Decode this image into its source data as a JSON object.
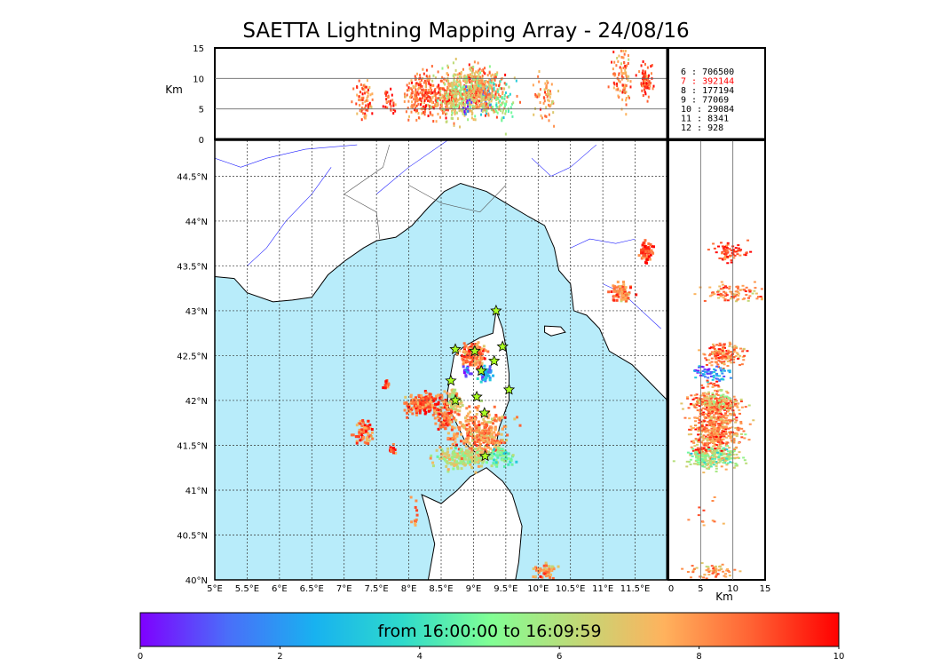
{
  "title": "SAETTA Lightning Mapping Array - 24/08/16",
  "chart_data": {
    "type": "scatter",
    "map": {
      "lon_range": [
        5,
        12
      ],
      "lat_range": [
        40,
        44.9
      ],
      "lon_ticks": [
        5,
        5.5,
        6,
        6.5,
        7,
        7.5,
        8,
        8.5,
        9,
        9.5,
        10,
        10.5,
        11,
        11.5
      ],
      "lon_tick_labels": [
        "5°E",
        "5.5°E",
        "6°E",
        "6.5°E",
        "7°E",
        "7.5°E",
        "8°E",
        "8.5°E",
        "9°E",
        "9.5°E",
        "10°E",
        "10.5°E",
        "11°E",
        "11.5°E"
      ],
      "lat_ticks": [
        40,
        40.5,
        41,
        41.5,
        42,
        42.5,
        43,
        43.5,
        44,
        44.5
      ],
      "lat_tick_labels": [
        "40°N",
        "40.5°N",
        "41°N",
        "41.5°N",
        "42°N",
        "42.5°N",
        "43°N",
        "43.5°N",
        "44°N",
        "44.5°N"
      ],
      "sea_color": "#b8ecfa",
      "land_color": "#ffffff",
      "grid": true
    },
    "altitude_axis": {
      "ylabel": "Km",
      "xlabel": "Km",
      "range": [
        0,
        15
      ],
      "ticks": [
        0,
        5,
        10,
        15
      ],
      "tick_labels": [
        "0",
        "5",
        "10",
        "15"
      ]
    },
    "stations": [
      {
        "lon": 9.35,
        "lat": 43.0
      },
      {
        "lon": 8.72,
        "lat": 42.57
      },
      {
        "lon": 9.02,
        "lat": 42.55
      },
      {
        "lon": 9.45,
        "lat": 42.6
      },
      {
        "lon": 9.32,
        "lat": 42.44
      },
      {
        "lon": 9.12,
        "lat": 42.33
      },
      {
        "lon": 8.65,
        "lat": 42.22
      },
      {
        "lon": 9.55,
        "lat": 42.12
      },
      {
        "lon": 8.72,
        "lat": 42.0
      },
      {
        "lon": 9.05,
        "lat": 42.04
      },
      {
        "lon": 9.17,
        "lat": 41.86
      },
      {
        "lon": 9.18,
        "lat": 41.38
      }
    ],
    "clusters": [
      {
        "lon": 9.0,
        "lat": 42.5,
        "sx": 0.1,
        "sy": 0.06,
        "n": 160,
        "h": 8.6,
        "hs": 1.5,
        "t": 8.4
      },
      {
        "lon": 9.18,
        "lat": 42.3,
        "sx": 0.05,
        "sy": 0.05,
        "n": 50,
        "h": 7,
        "hs": 1.8,
        "t": 2.0
      },
      {
        "lon": 8.25,
        "lat": 41.96,
        "sx": 0.16,
        "sy": 0.06,
        "n": 230,
        "h": 7.4,
        "hs": 1.8,
        "t": 8.8
      },
      {
        "lon": 8.7,
        "lat": 42.0,
        "sx": 0.06,
        "sy": 0.06,
        "n": 80,
        "h": 7,
        "hs": 2,
        "t": 6.5
      },
      {
        "lon": 8.55,
        "lat": 41.8,
        "sx": 0.08,
        "sy": 0.06,
        "n": 70,
        "h": 7.4,
        "hs": 1.7,
        "t": 8.7
      },
      {
        "lon": 9.1,
        "lat": 41.65,
        "sx": 0.22,
        "sy": 0.13,
        "n": 330,
        "h": 7.6,
        "hs": 1.9,
        "t": 8.0
      },
      {
        "lon": 8.85,
        "lat": 41.36,
        "sx": 0.22,
        "sy": 0.06,
        "n": 200,
        "h": 7.2,
        "hs": 2.0,
        "t": 6.3
      },
      {
        "lon": 9.45,
        "lat": 41.37,
        "sx": 0.1,
        "sy": 0.05,
        "n": 55,
        "h": 6,
        "hs": 2,
        "t": 4.6
      },
      {
        "lon": 7.3,
        "lat": 41.65,
        "sx": 0.07,
        "sy": 0.07,
        "n": 70,
        "h": 6.5,
        "hs": 1.5,
        "t": 8.6
      },
      {
        "lon": 7.75,
        "lat": 41.45,
        "sx": 0.03,
        "sy": 0.03,
        "n": 15,
        "h": 6,
        "hs": 1,
        "t": 9.2
      },
      {
        "lon": 7.65,
        "lat": 42.17,
        "sx": 0.03,
        "sy": 0.03,
        "n": 15,
        "h": 6.5,
        "hs": 1,
        "t": 9.2
      },
      {
        "lon": 11.3,
        "lat": 43.2,
        "sx": 0.08,
        "sy": 0.05,
        "n": 90,
        "h": 10.2,
        "hs": 2.3,
        "t": 8.3
      },
      {
        "lon": 11.67,
        "lat": 43.66,
        "sx": 0.05,
        "sy": 0.05,
        "n": 70,
        "h": 9.7,
        "hs": 1.5,
        "t": 9.1
      },
      {
        "lon": 10.1,
        "lat": 40.1,
        "sx": 0.08,
        "sy": 0.04,
        "n": 60,
        "h": 6.6,
        "hs": 2,
        "t": 7.8
      },
      {
        "lon": 8.1,
        "lat": 40.7,
        "sx": 0.03,
        "sy": 0.1,
        "n": 12,
        "h": 6,
        "hs": 1.5,
        "t": 8.2
      },
      {
        "lon": 8.9,
        "lat": 42.33,
        "sx": 0.03,
        "sy": 0.03,
        "n": 16,
        "h": 6,
        "hs": 1.5,
        "t": 0.6
      }
    ],
    "flash_counts": [
      {
        "label": " 6  :   706500",
        "color": "#000000"
      },
      {
        "label": " 7  :   392144",
        "color": "#ff0000"
      },
      {
        "label": " 8  :   177194",
        "color": "#000000"
      },
      {
        "label": " 9  :    77069",
        "color": "#000000"
      },
      {
        "label": "10  :    29084",
        "color": "#000000"
      },
      {
        "label": "11  :     8341",
        "color": "#000000"
      },
      {
        "label": "12  :      928",
        "color": "#000000"
      }
    ],
    "colorbar": {
      "label": "from 16:00:00 to 16:09:59",
      "range": [
        0,
        10
      ],
      "ticks": [
        0,
        2,
        4,
        6,
        8,
        10
      ],
      "tick_labels": [
        "0",
        "2",
        "4",
        "6",
        "8",
        "10"
      ],
      "colors": [
        "#7f00ff",
        "#4a6ef9",
        "#18b2f0",
        "#2edacb",
        "#80ff95",
        "#c0d977",
        "#ffb25d",
        "#ff6233",
        "#ff0000"
      ]
    }
  }
}
